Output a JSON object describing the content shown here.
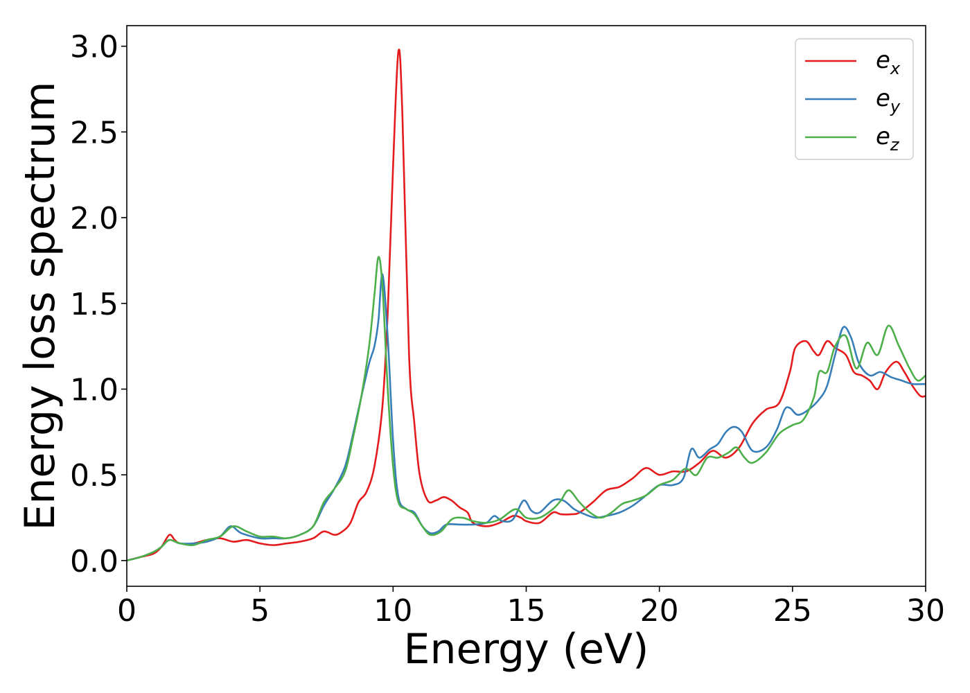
{
  "chart_data": {
    "type": "line",
    "title": "",
    "xlabel": "Energy (eV)",
    "ylabel": "Energy loss spectrum",
    "xlim": [
      0,
      30
    ],
    "ylim": [
      -0.15,
      3.12
    ],
    "xticks": [
      0,
      5,
      10,
      15,
      20,
      25,
      30
    ],
    "xtick_labels": [
      "0",
      "5",
      "10",
      "15",
      "20",
      "25",
      "30"
    ],
    "yticks": [
      0.0,
      0.5,
      1.0,
      1.5,
      2.0,
      2.5,
      3.0
    ],
    "ytick_labels": [
      "0.0",
      "0.5",
      "1.0",
      "1.5",
      "2.0",
      "2.5",
      "3.0"
    ],
    "grid": false,
    "legend_position": "top-right",
    "series": [
      {
        "name": "e",
        "subscript": "x",
        "color": "#e41a1c",
        "points": [
          [
            0,
            0
          ],
          [
            0.5,
            0.02
          ],
          [
            1.0,
            0.04
          ],
          [
            1.3,
            0.08
          ],
          [
            1.6,
            0.15
          ],
          [
            1.8,
            0.12
          ],
          [
            2.0,
            0.1
          ],
          [
            2.5,
            0.1
          ],
          [
            3.0,
            0.12
          ],
          [
            3.5,
            0.13
          ],
          [
            4.0,
            0.11
          ],
          [
            4.5,
            0.12
          ],
          [
            5.0,
            0.1
          ],
          [
            5.5,
            0.09
          ],
          [
            6.0,
            0.1
          ],
          [
            6.5,
            0.11
          ],
          [
            7.0,
            0.13
          ],
          [
            7.4,
            0.17
          ],
          [
            7.8,
            0.15
          ],
          [
            8.1,
            0.17
          ],
          [
            8.4,
            0.22
          ],
          [
            8.7,
            0.34
          ],
          [
            9.0,
            0.4
          ],
          [
            9.3,
            0.55
          ],
          [
            9.6,
            0.9
          ],
          [
            9.8,
            1.45
          ],
          [
            10.0,
            2.3
          ],
          [
            10.2,
            2.97
          ],
          [
            10.35,
            2.6
          ],
          [
            10.6,
            1.2
          ],
          [
            10.8,
            0.8
          ],
          [
            11.0,
            0.5
          ],
          [
            11.3,
            0.35
          ],
          [
            11.6,
            0.35
          ],
          [
            11.9,
            0.37
          ],
          [
            12.2,
            0.35
          ],
          [
            12.5,
            0.31
          ],
          [
            12.8,
            0.28
          ],
          [
            13.0,
            0.22
          ],
          [
            13.5,
            0.2
          ],
          [
            14.0,
            0.22
          ],
          [
            14.5,
            0.26
          ],
          [
            14.8,
            0.25
          ],
          [
            15.0,
            0.23
          ],
          [
            15.5,
            0.22
          ],
          [
            16.0,
            0.28
          ],
          [
            16.3,
            0.27
          ],
          [
            16.7,
            0.27
          ],
          [
            17.0,
            0.28
          ],
          [
            17.5,
            0.34
          ],
          [
            18.0,
            0.41
          ],
          [
            18.5,
            0.43
          ],
          [
            19.0,
            0.48
          ],
          [
            19.5,
            0.54
          ],
          [
            20.0,
            0.5
          ],
          [
            20.5,
            0.52
          ],
          [
            21.0,
            0.52
          ],
          [
            21.5,
            0.57
          ],
          [
            22.0,
            0.64
          ],
          [
            22.5,
            0.6
          ],
          [
            23.0,
            0.66
          ],
          [
            23.5,
            0.8
          ],
          [
            24.0,
            0.88
          ],
          [
            24.5,
            0.92
          ],
          [
            24.9,
            1.1
          ],
          [
            25.1,
            1.24
          ],
          [
            25.5,
            1.28
          ],
          [
            25.8,
            1.22
          ],
          [
            26.0,
            1.2
          ],
          [
            26.3,
            1.28
          ],
          [
            26.6,
            1.24
          ],
          [
            27.0,
            1.2
          ],
          [
            27.3,
            1.1
          ],
          [
            27.6,
            1.08
          ],
          [
            27.9,
            1.05
          ],
          [
            28.2,
            1.0
          ],
          [
            28.5,
            1.1
          ],
          [
            28.9,
            1.16
          ],
          [
            29.2,
            1.1
          ],
          [
            29.5,
            1.02
          ],
          [
            29.8,
            0.96
          ],
          [
            30.0,
            0.96
          ]
        ]
      },
      {
        "name": "e",
        "subscript": "y",
        "color": "#377eb8",
        "points": [
          [
            0,
            0
          ],
          [
            0.5,
            0.02
          ],
          [
            1.0,
            0.05
          ],
          [
            1.3,
            0.08
          ],
          [
            1.6,
            0.12
          ],
          [
            2.0,
            0.1
          ],
          [
            2.5,
            0.1
          ],
          [
            3.0,
            0.11
          ],
          [
            3.5,
            0.14
          ],
          [
            3.9,
            0.2
          ],
          [
            4.3,
            0.16
          ],
          [
            5.0,
            0.13
          ],
          [
            5.5,
            0.13
          ],
          [
            6.0,
            0.13
          ],
          [
            6.5,
            0.15
          ],
          [
            7.0,
            0.2
          ],
          [
            7.4,
            0.32
          ],
          [
            7.8,
            0.42
          ],
          [
            8.2,
            0.55
          ],
          [
            8.5,
            0.74
          ],
          [
            8.8,
            0.95
          ],
          [
            9.1,
            1.15
          ],
          [
            9.3,
            1.25
          ],
          [
            9.45,
            1.4
          ],
          [
            9.6,
            1.67
          ],
          [
            9.8,
            1.3
          ],
          [
            10.0,
            0.7
          ],
          [
            10.2,
            0.37
          ],
          [
            10.5,
            0.3
          ],
          [
            10.8,
            0.28
          ],
          [
            11.1,
            0.2
          ],
          [
            11.4,
            0.16
          ],
          [
            11.7,
            0.17
          ],
          [
            12.0,
            0.21
          ],
          [
            12.5,
            0.21
          ],
          [
            13.0,
            0.21
          ],
          [
            13.5,
            0.22
          ],
          [
            13.8,
            0.26
          ],
          [
            14.1,
            0.23
          ],
          [
            14.5,
            0.24
          ],
          [
            14.9,
            0.35
          ],
          [
            15.2,
            0.29
          ],
          [
            15.5,
            0.28
          ],
          [
            16.0,
            0.35
          ],
          [
            16.4,
            0.35
          ],
          [
            16.8,
            0.3
          ],
          [
            17.2,
            0.27
          ],
          [
            17.6,
            0.25
          ],
          [
            18.0,
            0.26
          ],
          [
            18.5,
            0.28
          ],
          [
            19.0,
            0.32
          ],
          [
            19.5,
            0.38
          ],
          [
            20.0,
            0.44
          ],
          [
            20.5,
            0.44
          ],
          [
            20.9,
            0.48
          ],
          [
            21.2,
            0.65
          ],
          [
            21.5,
            0.6
          ],
          [
            21.9,
            0.65
          ],
          [
            22.2,
            0.68
          ],
          [
            22.5,
            0.75
          ],
          [
            22.8,
            0.78
          ],
          [
            23.1,
            0.75
          ],
          [
            23.5,
            0.64
          ],
          [
            24.0,
            0.66
          ],
          [
            24.4,
            0.76
          ],
          [
            24.7,
            0.88
          ],
          [
            24.9,
            0.89
          ],
          [
            25.2,
            0.85
          ],
          [
            25.6,
            0.88
          ],
          [
            26.0,
            0.94
          ],
          [
            26.3,
            1.02
          ],
          [
            26.6,
            1.2
          ],
          [
            26.9,
            1.36
          ],
          [
            27.2,
            1.3
          ],
          [
            27.5,
            1.15
          ],
          [
            27.9,
            1.08
          ],
          [
            28.3,
            1.1
          ],
          [
            28.7,
            1.07
          ],
          [
            29.1,
            1.05
          ],
          [
            29.5,
            1.03
          ],
          [
            30.0,
            1.03
          ]
        ]
      },
      {
        "name": "e",
        "subscript": "z",
        "color": "#4daf4a",
        "points": [
          [
            0,
            0
          ],
          [
            0.5,
            0.02
          ],
          [
            1.0,
            0.05
          ],
          [
            1.3,
            0.08
          ],
          [
            1.6,
            0.12
          ],
          [
            2.0,
            0.1
          ],
          [
            2.5,
            0.09
          ],
          [
            3.0,
            0.12
          ],
          [
            3.5,
            0.14
          ],
          [
            4.0,
            0.2
          ],
          [
            4.5,
            0.17
          ],
          [
            5.0,
            0.14
          ],
          [
            5.5,
            0.14
          ],
          [
            6.0,
            0.13
          ],
          [
            6.5,
            0.15
          ],
          [
            7.0,
            0.2
          ],
          [
            7.4,
            0.34
          ],
          [
            7.8,
            0.42
          ],
          [
            8.2,
            0.52
          ],
          [
            8.5,
            0.72
          ],
          [
            8.8,
            0.95
          ],
          [
            9.1,
            1.25
          ],
          [
            9.3,
            1.55
          ],
          [
            9.45,
            1.77
          ],
          [
            9.6,
            1.6
          ],
          [
            9.8,
            1.0
          ],
          [
            10.0,
            0.55
          ],
          [
            10.2,
            0.34
          ],
          [
            10.5,
            0.3
          ],
          [
            10.8,
            0.27
          ],
          [
            11.1,
            0.2
          ],
          [
            11.4,
            0.15
          ],
          [
            11.8,
            0.17
          ],
          [
            12.2,
            0.24
          ],
          [
            12.6,
            0.25
          ],
          [
            13.0,
            0.23
          ],
          [
            13.5,
            0.22
          ],
          [
            14.0,
            0.24
          ],
          [
            14.6,
            0.3
          ],
          [
            15.0,
            0.25
          ],
          [
            15.5,
            0.25
          ],
          [
            16.0,
            0.3
          ],
          [
            16.3,
            0.35
          ],
          [
            16.6,
            0.41
          ],
          [
            17.0,
            0.34
          ],
          [
            17.4,
            0.28
          ],
          [
            17.8,
            0.25
          ],
          [
            18.2,
            0.28
          ],
          [
            18.6,
            0.33
          ],
          [
            19.0,
            0.35
          ],
          [
            19.5,
            0.38
          ],
          [
            20.0,
            0.44
          ],
          [
            20.5,
            0.47
          ],
          [
            20.9,
            0.53
          ],
          [
            21.1,
            0.53
          ],
          [
            21.4,
            0.5
          ],
          [
            21.8,
            0.6
          ],
          [
            22.2,
            0.6
          ],
          [
            22.6,
            0.63
          ],
          [
            22.9,
            0.66
          ],
          [
            23.2,
            0.6
          ],
          [
            23.5,
            0.57
          ],
          [
            24.0,
            0.63
          ],
          [
            24.5,
            0.74
          ],
          [
            25.0,
            0.79
          ],
          [
            25.4,
            0.82
          ],
          [
            25.8,
            0.95
          ],
          [
            26.0,
            1.1
          ],
          [
            26.3,
            1.1
          ],
          [
            26.6,
            1.25
          ],
          [
            27.0,
            1.31
          ],
          [
            27.4,
            1.12
          ],
          [
            27.8,
            1.27
          ],
          [
            28.2,
            1.2
          ],
          [
            28.6,
            1.37
          ],
          [
            29.0,
            1.25
          ],
          [
            29.4,
            1.12
          ],
          [
            29.7,
            1.05
          ],
          [
            30.0,
            1.08
          ]
        ]
      }
    ]
  }
}
